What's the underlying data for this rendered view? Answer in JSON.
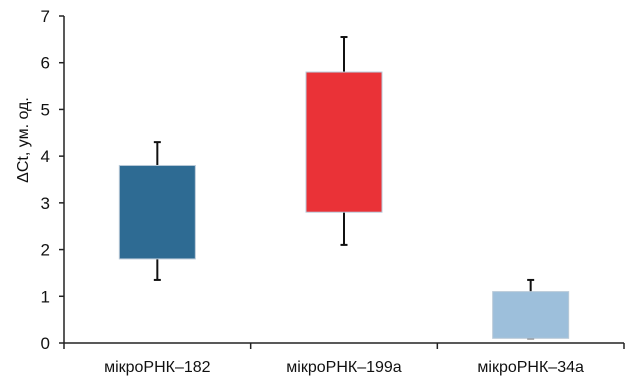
{
  "chart_data": {
    "type": "box",
    "ylabel": "ΔCt, ум. од.",
    "xlabel": "",
    "ylim": [
      0,
      7
    ],
    "yticks": [
      "0",
      "1",
      "2",
      "3",
      "4",
      "5",
      "6",
      "7"
    ],
    "grid": false,
    "categories": [
      "мікроРНК–182",
      "мікроРНК–199а",
      "мікроРНК–34а"
    ],
    "series": [
      {
        "category": "мікроРНК–182",
        "q1": 1.8,
        "q3": 3.8,
        "whisker_low": 1.35,
        "whisker_high": 4.3,
        "color": "#2e6b93"
      },
      {
        "category": "мікроРНК–199а",
        "q1": 2.8,
        "q3": 5.8,
        "whisker_low": 2.1,
        "whisker_high": 6.55,
        "color": "#ea3237"
      },
      {
        "category": "мікроРНК–34а",
        "q1": 0.1,
        "q3": 1.1,
        "whisker_low": 0.1,
        "whisker_high": 1.35,
        "color": "#9dbfdb"
      }
    ]
  }
}
